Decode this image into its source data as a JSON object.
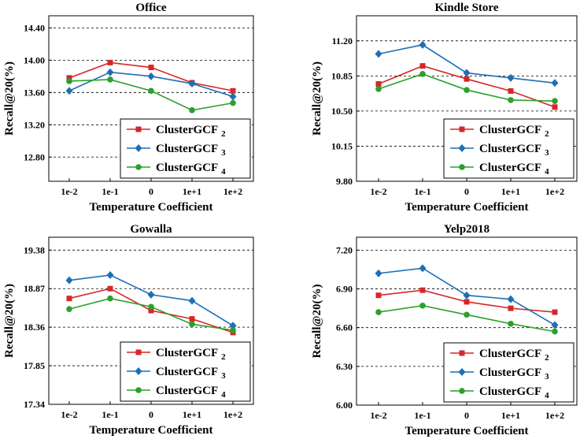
{
  "chart_data": [
    {
      "type": "line",
      "title": "Office",
      "xlabel": "Temperature Coefficient",
      "ylabel": "Recall@20(%)",
      "categories": [
        "1e-2",
        "1e-1",
        "0",
        "1e+1",
        "1e+2"
      ],
      "yticks": [
        "12.80",
        "13.20",
        "13.60",
        "14.00",
        "14.40"
      ],
      "ylim": [
        12.5,
        14.55
      ],
      "legend_position": "lower-right",
      "series": [
        {
          "name": "ClusterGCF",
          "subscript": "2",
          "color": "#d62728",
          "marker": "square",
          "values": [
            13.78,
            13.97,
            13.91,
            13.72,
            13.62
          ]
        },
        {
          "name": "ClusterGCF",
          "subscript": "3",
          "color": "#1f6fb4",
          "marker": "diamond",
          "values": [
            13.62,
            13.85,
            13.8,
            13.71,
            13.55
          ]
        },
        {
          "name": "ClusterGCF",
          "subscript": "4",
          "color": "#2ca02c",
          "marker": "circle",
          "values": [
            13.74,
            13.76,
            13.62,
            13.38,
            13.47
          ]
        }
      ]
    },
    {
      "type": "line",
      "title": "Kindle Store",
      "xlabel": "Temperature Coefficient",
      "ylabel": "Recall@20(%)",
      "categories": [
        "1e-2",
        "1e-1",
        "0",
        "1e+1",
        "1e+2"
      ],
      "yticks": [
        "9.80",
        "10.15",
        "10.50",
        "10.85",
        "11.20"
      ],
      "ylim": [
        9.8,
        11.45
      ],
      "legend_position": "lower-right",
      "series": [
        {
          "name": "ClusterGCF",
          "subscript": "2",
          "color": "#d62728",
          "marker": "square",
          "values": [
            10.77,
            10.95,
            10.82,
            10.7,
            10.54
          ]
        },
        {
          "name": "ClusterGCF",
          "subscript": "3",
          "color": "#1f6fb4",
          "marker": "diamond",
          "values": [
            11.07,
            11.16,
            10.88,
            10.83,
            10.78
          ]
        },
        {
          "name": "ClusterGCF",
          "subscript": "4",
          "color": "#2ca02c",
          "marker": "circle",
          "values": [
            10.72,
            10.87,
            10.71,
            10.61,
            10.6
          ]
        }
      ]
    },
    {
      "type": "line",
      "title": "Gowalla",
      "xlabel": "Temperature Coefficient",
      "ylabel": "Recall@20(%)",
      "categories": [
        "1e-2",
        "1e-1",
        "0",
        "1e+1",
        "1e+2"
      ],
      "yticks": [
        "17.34",
        "17.85",
        "18.36",
        "18.87",
        "19.38"
      ],
      "ylim": [
        17.34,
        19.55
      ],
      "legend_position": "lower-right",
      "series": [
        {
          "name": "ClusterGCF",
          "subscript": "2",
          "color": "#d62728",
          "marker": "square",
          "values": [
            18.74,
            18.87,
            18.58,
            18.47,
            18.29
          ]
        },
        {
          "name": "ClusterGCF",
          "subscript": "3",
          "color": "#1f6fb4",
          "marker": "diamond",
          "values": [
            18.98,
            19.05,
            18.79,
            18.71,
            18.38
          ]
        },
        {
          "name": "ClusterGCF",
          "subscript": "4",
          "color": "#2ca02c",
          "marker": "circle",
          "values": [
            18.6,
            18.74,
            18.63,
            18.4,
            18.32
          ]
        }
      ]
    },
    {
      "type": "line",
      "title": "Yelp2018",
      "xlabel": "Temperature Coefficient",
      "ylabel": "Recall@20(%)",
      "categories": [
        "1e-2",
        "1e-1",
        "0",
        "1e+1",
        "1e+2"
      ],
      "yticks": [
        "6.00",
        "6.30",
        "6.60",
        "6.90",
        "7.20"
      ],
      "ylim": [
        6.0,
        7.3
      ],
      "legend_position": "lower-right",
      "series": [
        {
          "name": "ClusterGCF",
          "subscript": "2",
          "color": "#d62728",
          "marker": "square",
          "values": [
            6.85,
            6.89,
            6.8,
            6.75,
            6.72
          ]
        },
        {
          "name": "ClusterGCF",
          "subscript": "3",
          "color": "#1f6fb4",
          "marker": "diamond",
          "values": [
            7.02,
            7.06,
            6.85,
            6.82,
            6.62
          ]
        },
        {
          "name": "ClusterGCF",
          "subscript": "4",
          "color": "#2ca02c",
          "marker": "circle",
          "values": [
            6.72,
            6.77,
            6.7,
            6.63,
            6.57
          ]
        }
      ]
    }
  ]
}
